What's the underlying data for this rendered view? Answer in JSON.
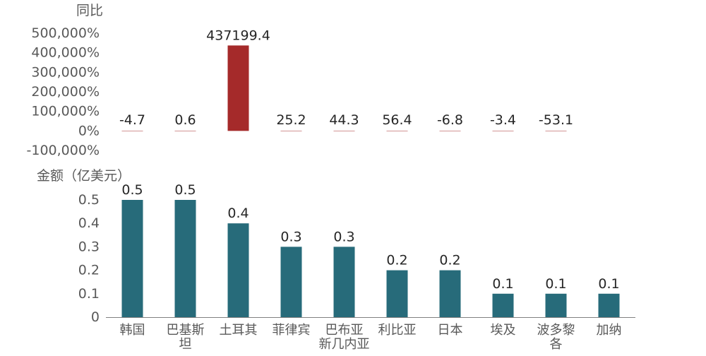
{
  "chart_data": [
    {
      "type": "bar",
      "ylabel": "同比",
      "categories": [
        "韩国",
        "巴基斯坦",
        "土耳其",
        "菲律宾",
        "巴布亚新几内亚",
        "利比亚",
        "日本",
        "埃及",
        "波多黎各",
        "加纳"
      ],
      "values": [
        -4.7,
        0.6,
        437199.4,
        25.2,
        44.3,
        56.4,
        -6.8,
        -3.4,
        -53.1,
        null
      ],
      "data_labels": [
        "-4.7",
        "0.6",
        "437199.4",
        "25.2",
        "44.3",
        "56.4",
        "-6.8",
        "-3.4",
        "-53.1",
        ""
      ],
      "ylim": [
        -100000,
        500000
      ],
      "yticks": [
        -100000,
        0,
        100000,
        200000,
        300000,
        400000,
        500000
      ],
      "ytick_labels": [
        "-100,000%",
        "0%",
        "100,000%",
        "200,000%",
        "300,000%",
        "400,000%",
        "500,000%"
      ],
      "bar_color": "#A52A2A"
    },
    {
      "type": "bar",
      "ylabel": "金额（亿美元）",
      "categories": [
        "韩国",
        "巴基斯坦",
        "土耳其",
        "菲律宾",
        "巴布亚新几内亚",
        "利比亚",
        "日本",
        "埃及",
        "波多黎各",
        "加纳"
      ],
      "category_lines": [
        [
          "韩国"
        ],
        [
          "巴基斯",
          "坦"
        ],
        [
          "土耳其"
        ],
        [
          "菲律宾"
        ],
        [
          "巴布亚",
          "新几内亚"
        ],
        [
          "利比亚"
        ],
        [
          "日本"
        ],
        [
          "埃及"
        ],
        [
          "波多黎",
          "各"
        ],
        [
          "加纳"
        ]
      ],
      "values": [
        0.5,
        0.5,
        0.4,
        0.3,
        0.3,
        0.2,
        0.2,
        0.1,
        0.1,
        0.1
      ],
      "data_labels": [
        "0.5",
        "0.5",
        "0.4",
        "0.3",
        "0.3",
        "0.2",
        "0.2",
        "0.1",
        "0.1",
        "0.1"
      ],
      "ylim": [
        0,
        0.5
      ],
      "yticks": [
        0,
        0.1,
        0.2,
        0.3,
        0.4,
        0.5
      ],
      "ytick_labels": [
        "0",
        "0.1",
        "0.2",
        "0.3",
        "0.4",
        "0.5"
      ],
      "bar_color": "#276B7A",
      "axis_color": "#808080"
    }
  ]
}
